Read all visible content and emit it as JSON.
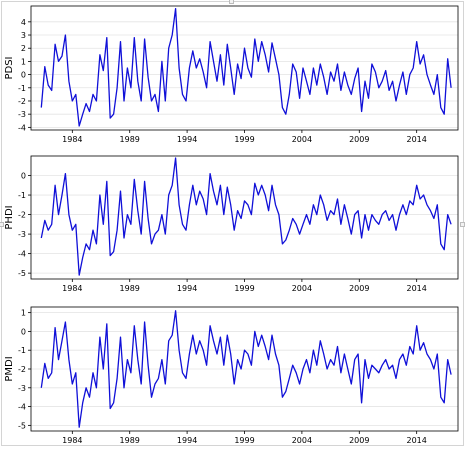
{
  "figure": {
    "background": "#ffffff",
    "line_color": "#1010d8",
    "grid_color": "#e4e4e4"
  },
  "chart_data": [
    {
      "type": "line",
      "title": "",
      "xlabel": "",
      "ylabel": "PDSI",
      "xlim": [
        1980.4,
        2017.6
      ],
      "ylim": [
        -4.2,
        5.2
      ],
      "xticks": [
        1984,
        1989,
        1994,
        1999,
        2004,
        2009,
        2014
      ],
      "xtick_labels": [
        "1984",
        "1989",
        "1994",
        "1999",
        "2004",
        "2009",
        "2014"
      ],
      "yticks": [
        -4,
        -3,
        -2,
        -1,
        0,
        1,
        2,
        3,
        4
      ],
      "ytick_labels": [
        "-4",
        "-3",
        "-2",
        "-1",
        "0",
        "1",
        "2",
        "3",
        "4"
      ],
      "grid": true,
      "series": [
        {
          "color": "#1010d8",
          "x": [
            1981.3,
            1981.6,
            1981.9,
            1982.2,
            1982.5,
            1982.8,
            1983.1,
            1983.4,
            1983.7,
            1984.0,
            1984.3,
            1984.6,
            1984.9,
            1985.2,
            1985.5,
            1985.8,
            1986.1,
            1986.4,
            1986.7,
            1987.0,
            1987.3,
            1987.6,
            1987.9,
            1988.2,
            1988.5,
            1988.8,
            1989.1,
            1989.4,
            1989.7,
            1990.0,
            1990.3,
            1990.6,
            1990.9,
            1991.2,
            1991.5,
            1991.8,
            1992.1,
            1992.4,
            1992.7,
            1993.0,
            1993.3,
            1993.6,
            1993.9,
            1994.2,
            1994.5,
            1994.8,
            1995.1,
            1995.4,
            1995.7,
            1996.0,
            1996.3,
            1996.6,
            1996.9,
            1997.2,
            1997.5,
            1997.8,
            1998.1,
            1998.4,
            1998.7,
            1999.0,
            1999.3,
            1999.6,
            1999.9,
            2000.2,
            2000.5,
            2000.8,
            2001.1,
            2001.4,
            2001.7,
            2002.0,
            2002.3,
            2002.6,
            2002.9,
            2003.2,
            2003.5,
            2003.8,
            2004.1,
            2004.4,
            2004.7,
            2005.0,
            2005.3,
            2005.6,
            2005.9,
            2006.2,
            2006.5,
            2006.8,
            2007.1,
            2007.4,
            2007.7,
            2008.0,
            2008.3,
            2008.6,
            2008.9,
            2009.2,
            2009.5,
            2009.8,
            2010.1,
            2010.4,
            2010.7,
            2011.0,
            2011.3,
            2011.6,
            2011.9,
            2012.2,
            2012.5,
            2012.8,
            2013.1,
            2013.4,
            2013.7,
            2014.0,
            2014.3,
            2014.6,
            2014.9,
            2015.2,
            2015.5,
            2015.8,
            2016.1,
            2016.4,
            2016.7,
            2017.0
          ],
          "y": [
            -2.5,
            0.6,
            -0.8,
            -1.2,
            2.3,
            1.0,
            1.4,
            3.0,
            -0.5,
            -2.0,
            -1.5,
            -3.9,
            -3.0,
            -2.2,
            -2.8,
            -1.5,
            -2.0,
            1.5,
            0.3,
            2.8,
            -3.3,
            -3.0,
            -1.0,
            2.5,
            -2.0,
            0.5,
            -1.0,
            2.8,
            -0.5,
            -2.0,
            2.7,
            -0.2,
            -2.0,
            -1.5,
            -2.8,
            1.0,
            -2.0,
            2.0,
            3.0,
            5.0,
            0.5,
            -1.5,
            -2.0,
            0.5,
            1.8,
            0.5,
            1.2,
            0.2,
            -1.0,
            2.5,
            1.0,
            -0.5,
            1.5,
            -0.8,
            2.3,
            0.5,
            -1.5,
            0.8,
            -0.3,
            2.0,
            0.5,
            -0.2,
            2.7,
            1.0,
            2.5,
            1.5,
            0.2,
            2.4,
            1.2,
            0.0,
            -2.5,
            -3.0,
            -1.5,
            0.8,
            0.2,
            -1.8,
            0.5,
            -0.5,
            -1.5,
            0.5,
            -0.8,
            0.8,
            -0.2,
            -1.5,
            0.2,
            -0.5,
            0.8,
            -1.2,
            0.2,
            -0.8,
            -1.5,
            -0.3,
            0.5,
            -2.8,
            -0.5,
            -1.8,
            0.8,
            0.2,
            -1.0,
            -0.5,
            0.3,
            -1.2,
            -0.5,
            -2.0,
            -0.8,
            0.2,
            -1.5,
            0.0,
            0.5,
            2.5,
            0.8,
            1.5,
            0.0,
            -0.8,
            -1.5,
            0.0,
            -2.5,
            -3.0,
            1.2,
            -1.0
          ]
        }
      ]
    },
    {
      "type": "line",
      "title": "",
      "xlabel": "",
      "ylabel": "PHDI",
      "xlim": [
        1980.4,
        2017.6
      ],
      "ylim": [
        -5.3,
        1.0
      ],
      "xticks": [
        1984,
        1989,
        1994,
        1999,
        2004,
        2009,
        2014
      ],
      "xtick_labels": [
        "1984",
        "1989",
        "1994",
        "1999",
        "2004",
        "2009",
        "2014"
      ],
      "yticks": [
        -5,
        -4,
        -3,
        -2,
        -1,
        0
      ],
      "ytick_labels": [
        "-5",
        "-4",
        "-3",
        "-2",
        "-1",
        "0"
      ],
      "grid": true,
      "series": [
        {
          "color": "#1010d8",
          "x": [
            1981.3,
            1981.6,
            1981.9,
            1982.2,
            1982.5,
            1982.8,
            1983.1,
            1983.4,
            1983.7,
            1984.0,
            1984.3,
            1984.6,
            1984.9,
            1985.2,
            1985.5,
            1985.8,
            1986.1,
            1986.4,
            1986.7,
            1987.0,
            1987.3,
            1987.6,
            1987.9,
            1988.2,
            1988.5,
            1988.8,
            1989.1,
            1989.4,
            1989.7,
            1990.0,
            1990.3,
            1990.6,
            1990.9,
            1991.2,
            1991.5,
            1991.8,
            1992.1,
            1992.4,
            1992.7,
            1993.0,
            1993.3,
            1993.6,
            1993.9,
            1994.2,
            1994.5,
            1994.8,
            1995.1,
            1995.4,
            1995.7,
            1996.0,
            1996.3,
            1996.6,
            1996.9,
            1997.2,
            1997.5,
            1997.8,
            1998.1,
            1998.4,
            1998.7,
            1999.0,
            1999.3,
            1999.6,
            1999.9,
            2000.2,
            2000.5,
            2000.8,
            2001.1,
            2001.4,
            2001.7,
            2002.0,
            2002.3,
            2002.6,
            2002.9,
            2003.2,
            2003.5,
            2003.8,
            2004.1,
            2004.4,
            2004.7,
            2005.0,
            2005.3,
            2005.6,
            2005.9,
            2006.2,
            2006.5,
            2006.8,
            2007.1,
            2007.4,
            2007.7,
            2008.0,
            2008.3,
            2008.6,
            2008.9,
            2009.2,
            2009.5,
            2009.8,
            2010.1,
            2010.4,
            2010.7,
            2011.0,
            2011.3,
            2011.6,
            2011.9,
            2012.2,
            2012.5,
            2012.8,
            2013.1,
            2013.4,
            2013.7,
            2014.0,
            2014.3,
            2014.6,
            2014.9,
            2015.2,
            2015.5,
            2015.8,
            2016.1,
            2016.4,
            2016.7,
            2017.0
          ],
          "y": [
            -3.2,
            -2.3,
            -2.8,
            -2.5,
            -0.5,
            -2.0,
            -1.0,
            0.1,
            -2.0,
            -2.8,
            -2.5,
            -5.1,
            -4.2,
            -3.5,
            -3.8,
            -2.8,
            -3.5,
            -1.0,
            -2.5,
            -0.3,
            -4.1,
            -3.9,
            -2.8,
            -0.8,
            -3.2,
            -2.0,
            -2.5,
            -0.2,
            -1.8,
            -3.0,
            -0.3,
            -2.2,
            -3.5,
            -3.0,
            -2.8,
            -2.0,
            -3.0,
            -1.0,
            -0.5,
            0.9,
            -1.5,
            -2.5,
            -2.8,
            -1.5,
            -0.5,
            -1.5,
            -0.8,
            -1.2,
            -2.0,
            0.1,
            -0.8,
            -1.5,
            -0.5,
            -2.0,
            -0.6,
            -1.5,
            -2.8,
            -1.8,
            -2.2,
            -1.3,
            -1.5,
            -2.0,
            -0.4,
            -1.0,
            -0.5,
            -1.0,
            -1.8,
            -0.5,
            -1.5,
            -2.0,
            -3.5,
            -3.3,
            -2.8,
            -2.2,
            -2.5,
            -3.0,
            -2.5,
            -2.0,
            -2.5,
            -1.5,
            -2.0,
            -1.0,
            -1.5,
            -2.3,
            -1.8,
            -2.0,
            -1.2,
            -2.5,
            -1.5,
            -2.2,
            -3.0,
            -2.0,
            -1.8,
            -3.2,
            -2.0,
            -2.8,
            -2.0,
            -2.3,
            -2.5,
            -2.0,
            -1.8,
            -2.3,
            -2.0,
            -2.8,
            -2.0,
            -1.5,
            -2.0,
            -1.3,
            -1.5,
            -0.5,
            -1.2,
            -1.0,
            -1.5,
            -1.8,
            -2.2,
            -1.5,
            -3.5,
            -3.8,
            -2.0,
            -2.5
          ]
        }
      ]
    },
    {
      "type": "line",
      "title": "",
      "xlabel": "",
      "ylabel": "PMDI",
      "xlim": [
        1980.4,
        2017.6
      ],
      "ylim": [
        -5.3,
        1.3
      ],
      "xticks": [
        1984,
        1989,
        1994,
        1999,
        2004,
        2009,
        2014
      ],
      "xtick_labels": [
        "1984",
        "1989",
        "1994",
        "1999",
        "2004",
        "2009",
        "2014"
      ],
      "yticks": [
        -5,
        -4,
        -3,
        -2,
        -1,
        0,
        1
      ],
      "ytick_labels": [
        "-5",
        "-4",
        "-3",
        "-2",
        "-1",
        "0",
        "1"
      ],
      "grid": true,
      "series": [
        {
          "color": "#1010d8",
          "x": [
            1981.3,
            1981.6,
            1981.9,
            1982.2,
            1982.5,
            1982.8,
            1983.1,
            1983.4,
            1983.7,
            1984.0,
            1984.3,
            1984.6,
            1984.9,
            1985.2,
            1985.5,
            1985.8,
            1986.1,
            1986.4,
            1986.7,
            1987.0,
            1987.3,
            1987.6,
            1987.9,
            1988.2,
            1988.5,
            1988.8,
            1989.1,
            1989.4,
            1989.7,
            1990.0,
            1990.3,
            1990.6,
            1990.9,
            1991.2,
            1991.5,
            1991.8,
            1992.1,
            1992.4,
            1992.7,
            1993.0,
            1993.3,
            1993.6,
            1993.9,
            1994.2,
            1994.5,
            1994.8,
            1995.1,
            1995.4,
            1995.7,
            1996.0,
            1996.3,
            1996.6,
            1996.9,
            1997.2,
            1997.5,
            1997.8,
            1998.1,
            1998.4,
            1998.7,
            1999.0,
            1999.3,
            1999.6,
            1999.9,
            2000.2,
            2000.5,
            2000.8,
            2001.1,
            2001.4,
            2001.7,
            2002.0,
            2002.3,
            2002.6,
            2002.9,
            2003.2,
            2003.5,
            2003.8,
            2004.1,
            2004.4,
            2004.7,
            2005.0,
            2005.3,
            2005.6,
            2005.9,
            2006.2,
            2006.5,
            2006.8,
            2007.1,
            2007.4,
            2007.7,
            2008.0,
            2008.3,
            2008.6,
            2008.9,
            2009.2,
            2009.5,
            2009.8,
            2010.1,
            2010.4,
            2010.7,
            2011.0,
            2011.3,
            2011.6,
            2011.9,
            2012.2,
            2012.5,
            2012.8,
            2013.1,
            2013.4,
            2013.7,
            2014.0,
            2014.3,
            2014.6,
            2014.9,
            2015.2,
            2015.5,
            2015.8,
            2016.1,
            2016.4,
            2016.7,
            2017.0
          ],
          "y": [
            -3.0,
            -1.7,
            -2.5,
            -2.2,
            0.2,
            -1.5,
            -0.5,
            0.5,
            -1.5,
            -2.8,
            -2.2,
            -5.1,
            -3.8,
            -3.0,
            -3.5,
            -2.2,
            -3.0,
            -0.3,
            -2.0,
            0.4,
            -4.1,
            -3.8,
            -2.5,
            -0.3,
            -3.0,
            -1.5,
            -2.2,
            0.3,
            -1.5,
            -2.8,
            0.5,
            -1.8,
            -3.5,
            -2.8,
            -2.5,
            -1.5,
            -2.8,
            -0.5,
            -0.2,
            1.1,
            -1.0,
            -2.2,
            -2.5,
            -1.2,
            -0.2,
            -1.2,
            -0.5,
            -1.0,
            -1.8,
            0.3,
            -0.5,
            -1.2,
            -0.3,
            -1.8,
            -0.2,
            -1.2,
            -2.8,
            -1.5,
            -2.0,
            -1.0,
            -1.2,
            -1.8,
            0.0,
            -0.8,
            -0.2,
            -0.8,
            -1.5,
            -0.2,
            -1.2,
            -1.8,
            -3.5,
            -3.2,
            -2.5,
            -1.8,
            -2.2,
            -2.8,
            -2.0,
            -1.5,
            -2.2,
            -1.0,
            -1.8,
            -0.5,
            -1.2,
            -2.0,
            -1.5,
            -1.8,
            -0.8,
            -2.2,
            -1.2,
            -2.0,
            -2.8,
            -1.5,
            -1.2,
            -3.8,
            -1.5,
            -2.5,
            -1.8,
            -2.0,
            -2.2,
            -1.8,
            -1.5,
            -2.0,
            -1.8,
            -2.5,
            -1.5,
            -1.2,
            -1.8,
            -0.8,
            -1.2,
            0.3,
            -1.0,
            -0.6,
            -1.2,
            -1.5,
            -2.0,
            -1.2,
            -3.5,
            -3.8,
            -1.5,
            -2.3
          ]
        }
      ]
    }
  ]
}
